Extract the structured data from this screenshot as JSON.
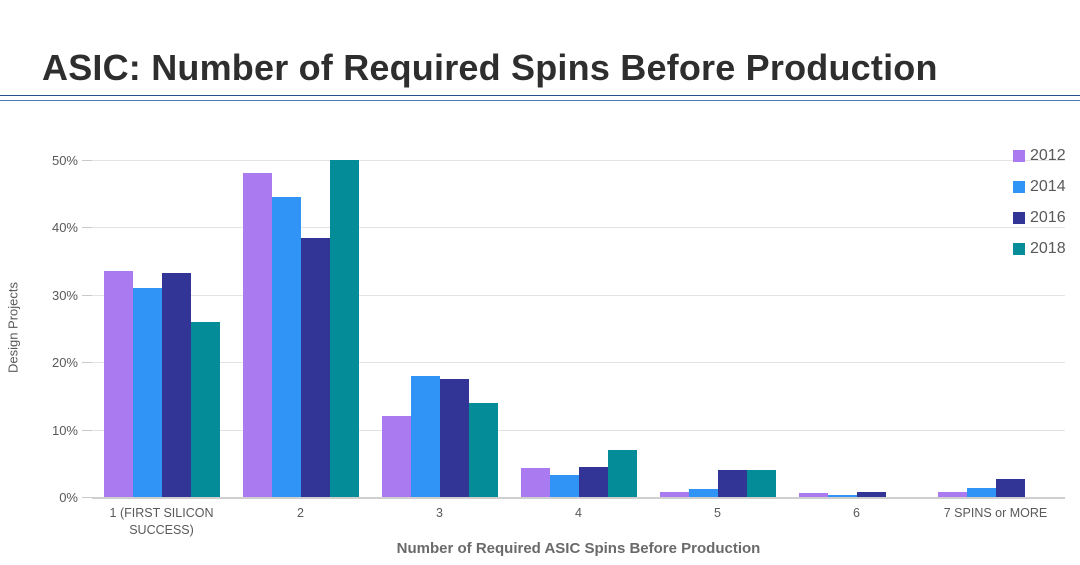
{
  "header": {
    "title": "ASIC: Number of Required Spins Before Production"
  },
  "colors": {
    "title_text": "#2e2e2e",
    "divider_blue": "#3363ae",
    "axis_text": "#595959",
    "axis_title_text": "#6a6a6a",
    "gridline": "#e3e3e3",
    "series_2012": "#a97af0",
    "series_2014": "#2f94f6",
    "series_2016": "#333596",
    "series_2018": "#058c99"
  },
  "chart_data": {
    "type": "bar",
    "title": "ASIC: Number of Required Spins Before Production",
    "xlabel": "Number of Required ASIC Spins Before Production",
    "ylabel": "Design Projects",
    "ylim": [
      0,
      50
    ],
    "yticks": [
      0,
      10,
      20,
      30,
      40,
      50
    ],
    "ytick_labels": [
      "0%",
      "10%",
      "20%",
      "30%",
      "40%",
      "50%"
    ],
    "grid": true,
    "legend_position": "top-right",
    "categories": [
      "1 (FIRST SILICON SUCCESS)",
      "2",
      "3",
      "4",
      "5",
      "6",
      "7 SPINS or MORE"
    ],
    "series": [
      {
        "name": "2012",
        "color": "#a97af0",
        "values": [
          33.5,
          48.0,
          12.0,
          4.3,
          0.7,
          0.6,
          0.8
        ]
      },
      {
        "name": "2014",
        "color": "#2f94f6",
        "values": [
          31.0,
          44.5,
          18.0,
          3.2,
          1.2,
          0.3,
          1.4
        ]
      },
      {
        "name": "2016",
        "color": "#333596",
        "values": [
          33.3,
          38.5,
          17.5,
          4.4,
          4.0,
          0.7,
          2.7
        ]
      },
      {
        "name": "2018",
        "color": "#058c99",
        "values": [
          26.0,
          50.0,
          14.0,
          7.0,
          4.0,
          0.0,
          0.0
        ]
      }
    ]
  }
}
